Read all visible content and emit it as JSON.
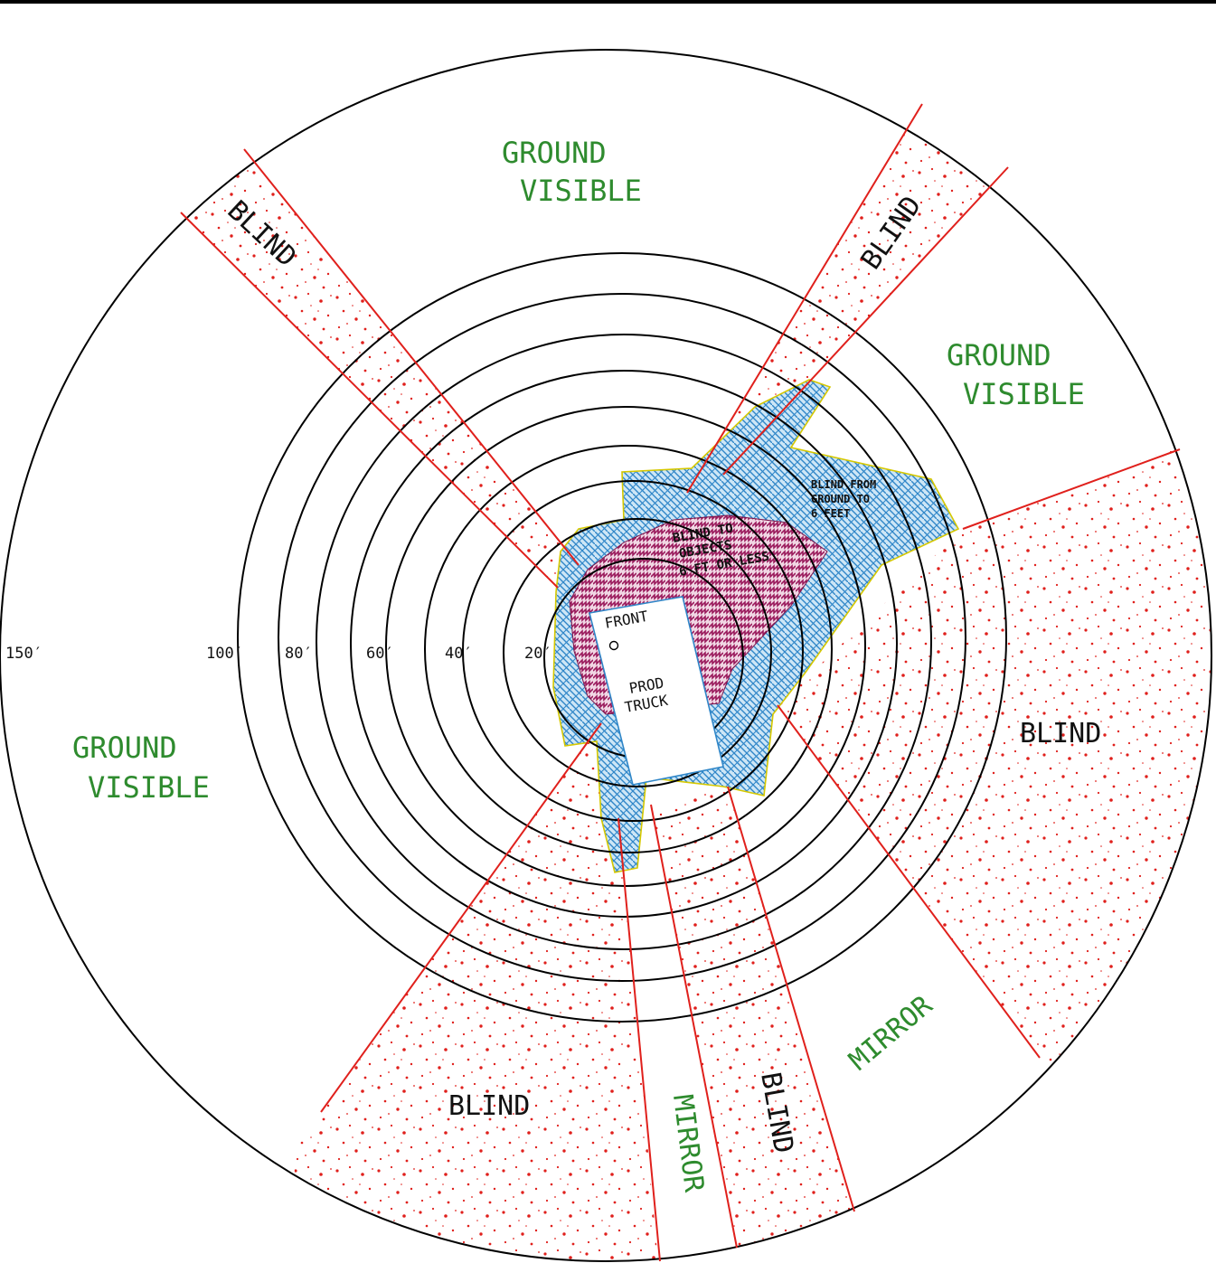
{
  "colors": {
    "ground_visible_label": "#2e8b2e",
    "mirror_label": "#2e8b2e",
    "blind_label": "#111111",
    "blind_boundary": "#e0201c",
    "blind_stipple": "#e0201c",
    "blind_ground_to_6ft_fill": "#4aa3df",
    "blind_objects_6ft_fill": "#b0206a",
    "outline": "#000000"
  },
  "range_labels": [
    "150′",
    "100′",
    "80′",
    "60′",
    "40′",
    "20′"
  ],
  "zone_labels": {
    "ground_visible_top": [
      "GROUND",
      "VISIBLE"
    ],
    "ground_visible_right": [
      "GROUND",
      "VISIBLE"
    ],
    "ground_visible_left": [
      "GROUND",
      "VISIBLE"
    ],
    "blind_top_left": "BLIND",
    "blind_top_right": "BLIND",
    "blind_right": "BLIND",
    "blind_bottom_left": "BLIND",
    "blind_bottom_center": "BLIND",
    "mirror_bottom_center": "MIRROR",
    "mirror_bottom_right": "MIRROR"
  },
  "blind_ground_to_6ft": [
    "BLIND FROM",
    "GROUND TO",
    "6 FEET"
  ],
  "blind_objects_6ft": [
    "BLIND TO",
    "OBJECTS",
    "6 FT OR LESS"
  ],
  "truck": {
    "front_label": "FRONT",
    "marker": "O",
    "name": [
      "PROD",
      "TRUCK"
    ]
  }
}
